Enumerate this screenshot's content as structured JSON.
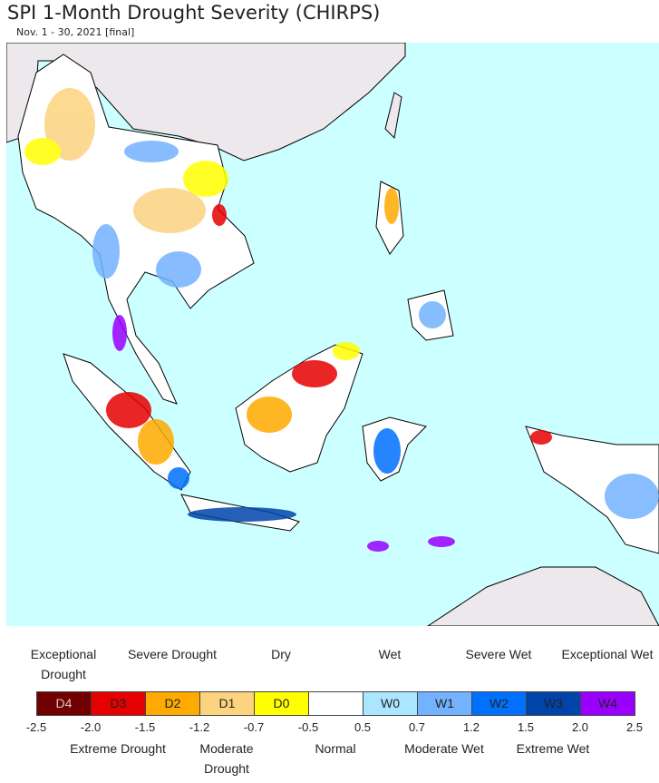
{
  "title": "SPI 1-Month Drought Severity (CHIRPS)",
  "subtitle": "Nov. 1 - 30, 2021 [final]",
  "legend": {
    "classes": [
      {
        "code": "D4",
        "name": "Exceptional Drought",
        "color": "#730000"
      },
      {
        "code": "D3",
        "name": "Extreme Drought",
        "color": "#e60000"
      },
      {
        "code": "D2",
        "name": "Severe Drought",
        "color": "#ffaa00"
      },
      {
        "code": "D1",
        "name": "Moderate Drought",
        "color": "#fcd37f"
      },
      {
        "code": "D0",
        "name": "Dry",
        "color": "#ffff00"
      },
      {
        "name": "Normal",
        "color": "#ffffff"
      },
      {
        "code": "W0",
        "name": "Wet",
        "color": "#aae6ff"
      },
      {
        "code": "W1",
        "name": "Moderate Wet",
        "color": "#73b2ff"
      },
      {
        "code": "W2",
        "name": "Severe Wet",
        "color": "#0070ff"
      },
      {
        "code": "W3",
        "name": "Extreme Wet",
        "color": "#0044aa"
      },
      {
        "code": "W4",
        "name": "Exceptional Wet",
        "color": "#9900ff"
      }
    ],
    "breaks": [
      -2.5,
      {
        "value": -2,
        "label": "-2.0"
      },
      -1.5,
      -1.2,
      -0.7,
      -0.5,
      0.5,
      0.7,
      1.2,
      1.5,
      {
        "value": 2,
        "label": "2.0"
      },
      2.5
    ]
  }
}
